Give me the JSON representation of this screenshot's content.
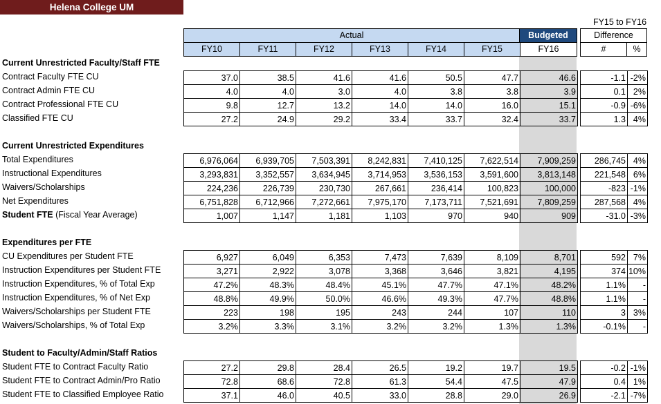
{
  "title": "Helena College UM",
  "headers": {
    "actual": "Actual",
    "budgeted": "Budgeted",
    "diff_top": "FY15 to FY16",
    "difference": "Difference",
    "num": "#",
    "pct": "%",
    "years": [
      "FY10",
      "FY11",
      "FY12",
      "FY13",
      "FY14",
      "FY15",
      "FY16"
    ]
  },
  "sections": [
    {
      "title": "Current Unrestricted Faculty/Staff FTE",
      "rows": [
        {
          "label": "Contract Faculty FTE CU",
          "values": [
            "37.0",
            "38.5",
            "41.6",
            "41.6",
            "50.5",
            "47.7",
            "46.6"
          ],
          "diff": "-1.1",
          "pct": "-2%"
        },
        {
          "label": "Contract Admin FTE CU",
          "values": [
            "4.0",
            "4.0",
            "3.0",
            "4.0",
            "3.8",
            "3.8",
            "3.9"
          ],
          "diff": "0.1",
          "pct": "2%"
        },
        {
          "label": "Contract Professional FTE CU",
          "values": [
            "9.8",
            "12.7",
            "13.2",
            "14.0",
            "14.0",
            "16.0",
            "15.1"
          ],
          "diff": "-0.9",
          "pct": "-6%"
        },
        {
          "label": "Classified FTE CU",
          "values": [
            "27.2",
            "24.9",
            "29.2",
            "33.4",
            "33.7",
            "32.4",
            "33.7"
          ],
          "diff": "1.3",
          "pct": "4%"
        }
      ]
    },
    {
      "title": "Current Unrestricted Expenditures",
      "rows": [
        {
          "label": "Total Expenditures",
          "values": [
            "6,976,064",
            "6,939,705",
            "7,503,391",
            "8,242,831",
            "7,410,125",
            "7,622,514",
            "7,909,259"
          ],
          "diff": "286,745",
          "pct": "4%"
        },
        {
          "label": "Instructional Expenditures",
          "values": [
            "3,293,831",
            "3,352,557",
            "3,634,945",
            "3,714,953",
            "3,536,153",
            "3,591,600",
            "3,813,148"
          ],
          "diff": "221,548",
          "pct": "6%"
        },
        {
          "label": "Waivers/Scholarships",
          "values": [
            "224,236",
            "226,739",
            "230,730",
            "267,661",
            "236,414",
            "100,823",
            "100,000"
          ],
          "diff": "-823",
          "pct": "-1%"
        },
        {
          "label": "Net Expenditures",
          "values": [
            "6,751,828",
            "6,712,966",
            "7,272,661",
            "7,975,170",
            "7,173,711",
            "7,521,691",
            "7,809,259"
          ],
          "diff": "287,568",
          "pct": "4%"
        },
        {
          "label": "Student FTE",
          "label_suffix": " (Fiscal Year Average)",
          "values": [
            "1,007",
            "1,147",
            "1,181",
            "1,103",
            "970",
            "940",
            "909"
          ],
          "diff": "-31.0",
          "pct": "-3%"
        }
      ]
    },
    {
      "title": "Expenditures per FTE",
      "rows": [
        {
          "label": "CU Expenditures per Student FTE",
          "values": [
            "6,927",
            "6,049",
            "6,353",
            "7,473",
            "7,639",
            "8,109",
            "8,701"
          ],
          "diff": "592",
          "pct": "7%"
        },
        {
          "label": "Instruction Expenditures per Student FTE",
          "values": [
            "3,271",
            "2,922",
            "3,078",
            "3,368",
            "3,646",
            "3,821",
            "4,195"
          ],
          "diff": "374",
          "pct": "10%"
        },
        {
          "label": "Instruction Expenditures, % of Total Exp",
          "values": [
            "47.2%",
            "48.3%",
            "48.4%",
            "45.1%",
            "47.7%",
            "47.1%",
            "48.2%"
          ],
          "diff": "1.1%",
          "pct": "-"
        },
        {
          "label": "Instruction Expenditures, % of Net Exp",
          "values": [
            "48.8%",
            "49.9%",
            "50.0%",
            "46.6%",
            "49.3%",
            "47.7%",
            "48.8%"
          ],
          "diff": "1.1%",
          "pct": "-"
        },
        {
          "label": "Waivers/Scholarships per Student FTE",
          "values": [
            "223",
            "198",
            "195",
            "243",
            "244",
            "107",
            "110"
          ],
          "diff": "3",
          "pct": "3%"
        },
        {
          "label": "Waivers/Scholarships, % of Total Exp",
          "values": [
            "3.2%",
            "3.3%",
            "3.1%",
            "3.2%",
            "3.2%",
            "1.3%",
            "1.3%"
          ],
          "diff": "-0.1%",
          "pct": "-"
        }
      ]
    },
    {
      "title": "Student to Faculty/Admin/Staff Ratios",
      "rows": [
        {
          "label": "Student FTE to Contract Faculty Ratio",
          "values": [
            "27.2",
            "29.8",
            "28.4",
            "26.5",
            "19.2",
            "19.7",
            "19.5"
          ],
          "diff": "-0.2",
          "pct": "-1%"
        },
        {
          "label": "Student FTE to Contract Admin/Pro Ratio",
          "values": [
            "72.8",
            "68.6",
            "72.8",
            "61.3",
            "54.4",
            "47.5",
            "47.9"
          ],
          "diff": "0.4",
          "pct": "1%"
        },
        {
          "label": "Student FTE to Classified Employee Ratio",
          "values": [
            "37.1",
            "46.0",
            "40.5",
            "33.0",
            "28.8",
            "29.0",
            "26.9"
          ],
          "diff": "-2.1",
          "pct": "-7%"
        }
      ]
    }
  ]
}
